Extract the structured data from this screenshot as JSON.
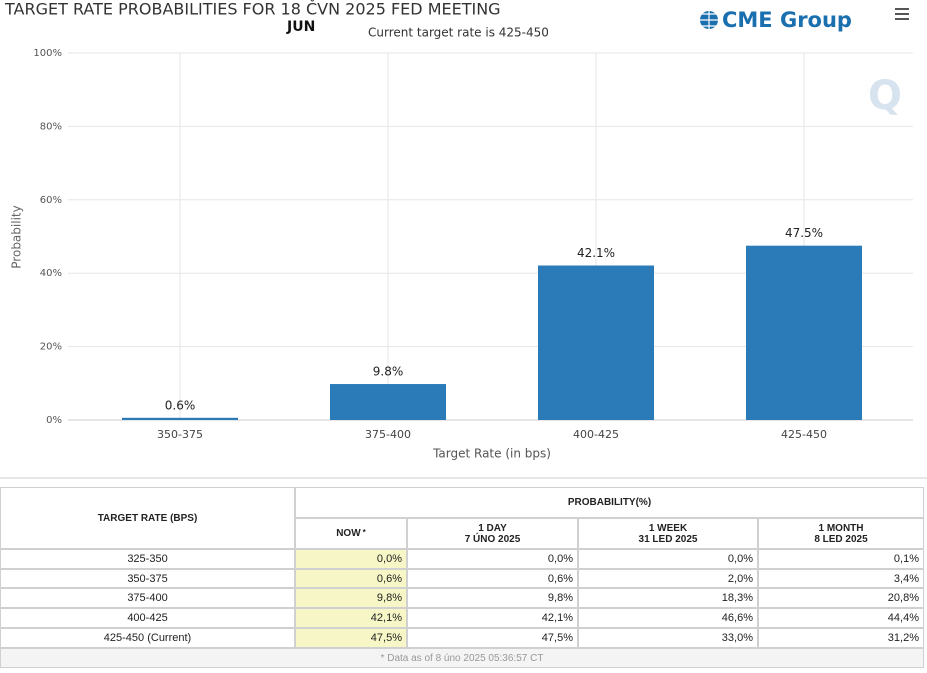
{
  "chart_data": {
    "type": "bar",
    "title": "TARGET RATE PROBABILITIES FOR 18 ČVN 2025 FED MEETING",
    "subtitle": "JUN",
    "annotation": "Current target rate is 425-450",
    "y_label": "Probability",
    "x_label": "Target Rate (in bps)",
    "categories": [
      "350-375",
      "375-400",
      "400-425",
      "425-450"
    ],
    "values": [
      0.6,
      9.8,
      42.1,
      47.5
    ],
    "value_labels": [
      "0.6%",
      "9.8%",
      "42.1%",
      "47.5%"
    ],
    "color": "#2b7bb9",
    "ylim": [
      0,
      100
    ],
    "yticks": [
      {
        "value": 0,
        "label": "0%"
      },
      {
        "value": 20,
        "label": "20%"
      },
      {
        "value": 40,
        "label": "40%"
      },
      {
        "value": 60,
        "label": "60%"
      },
      {
        "value": 80,
        "label": "80%"
      },
      {
        "value": 100,
        "label": "100%"
      }
    ],
    "grid": true
  },
  "header": {
    "logo": "CME Group",
    "watermark": "Q"
  },
  "table": {
    "row_header": "TARGET RATE (BPS)",
    "group_header": "PROBABILITY(%)",
    "columns": [
      {
        "title": "NOW",
        "note": "*"
      },
      {
        "title": "1 DAY",
        "date": "7 ÚNO 2025"
      },
      {
        "title": "1 WEEK",
        "date": "31 LED 2025"
      },
      {
        "title": "1 MONTH",
        "date": "8 LED 2025"
      }
    ],
    "rows": [
      [
        "325-350",
        "0,0%",
        "0,0%",
        "0,0%",
        "0,1%"
      ],
      [
        "350-375",
        "0,6%",
        "0,6%",
        "2,0%",
        "3,4%"
      ],
      [
        "375-400",
        "9,8%",
        "9,8%",
        "18,3%",
        "20,8%"
      ],
      [
        "400-425",
        "42,1%",
        "42,1%",
        "46,6%",
        "44,4%"
      ],
      [
        "425-450 (Current)",
        "47,5%",
        "47,5%",
        "33,0%",
        "31,2%"
      ]
    ],
    "footnote": "* Data as of 8 úno 2025 05:36:57 CT"
  }
}
